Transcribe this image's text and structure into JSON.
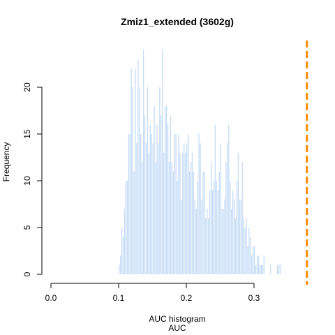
{
  "chart_data": {
    "type": "bar",
    "title": "Zmiz1_extended (3602g)",
    "xlabel": "AUC",
    "sub_xlabel": "AUC histogram",
    "ylabel": "Frequency",
    "xlim": [
      0.0,
      0.3
    ],
    "ylim": [
      0,
      24
    ],
    "x_ticks": [
      "0.0",
      "0.1",
      "0.2",
      "0.3"
    ],
    "y_ticks": [
      "0",
      "5",
      "10",
      "15",
      "20"
    ],
    "bin_start": 0.1,
    "bin_width": 0.002,
    "values": [
      1,
      2,
      5,
      4,
      7,
      10,
      10,
      15,
      15,
      22,
      20,
      11,
      22,
      14,
      23,
      20,
      15,
      12,
      24,
      17,
      14,
      20,
      13,
      16,
      15,
      14,
      18,
      12,
      16,
      14,
      20,
      17,
      24,
      13,
      18,
      18,
      16,
      12,
      17,
      12,
      11,
      15,
      15,
      10,
      15,
      13,
      8,
      13,
      14,
      13,
      14,
      15,
      11,
      12,
      13,
      11,
      8,
      7,
      10,
      15,
      14,
      8,
      11,
      11,
      6,
      7,
      6,
      9,
      12,
      9,
      10,
      16,
      10,
      9,
      11,
      14,
      7,
      7,
      8,
      12,
      14,
      16,
      10,
      7,
      9,
      8,
      6,
      10,
      13,
      8,
      8,
      12,
      6,
      5,
      6,
      3,
      5,
      4,
      2,
      3,
      3,
      1,
      2,
      2,
      1,
      1,
      1,
      2,
      0,
      0,
      0,
      0,
      1,
      0,
      0,
      0,
      0,
      1,
      1,
      1
    ],
    "bar_color": "#c6dcf7",
    "reference_line": {
      "x": 0.378,
      "color": "#ff8c00",
      "style": "dashed"
    }
  }
}
